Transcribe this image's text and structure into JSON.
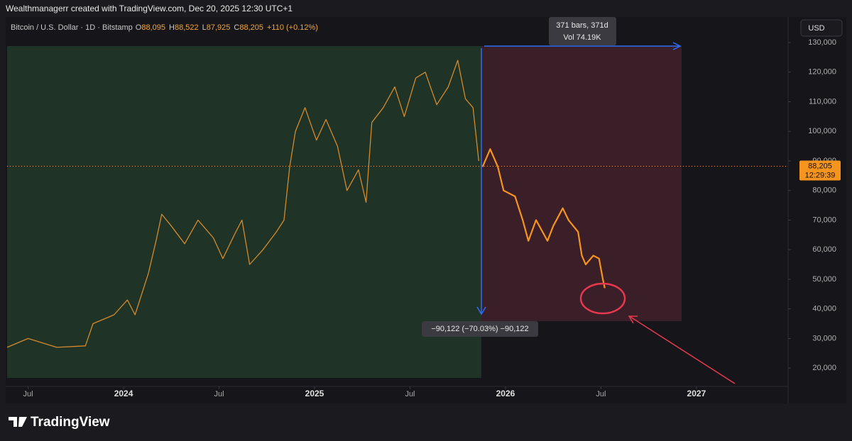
{
  "header": "Wealthmanagerr created with TradingView.com, Dec 20, 2025 12:30 UTC+1",
  "footer_logo": "TradingView",
  "chart_data": {
    "type": "line",
    "symbol": "Bitcoin / U.S. Dollar · 1D · Bitstamp",
    "ohlc": [
      {
        "label": "O",
        "value": "88,095"
      },
      {
        "label": "H",
        "value": "88,522"
      },
      {
        "label": "L",
        "value": "87,925"
      },
      {
        "label": "C",
        "value": "88,205"
      }
    ],
    "change": "+110 (+0.12%)",
    "currency": "USD",
    "last_price": {
      "value": 88205,
      "label": "88,205"
    },
    "countdown": "12:29:39",
    "measure_bars": "371 bars, 371d",
    "measure_volume": "Vol 74.19K",
    "measure_change": "−90,122 (−70.03%) −90,122",
    "series": [
      {
        "color": "#d48a2c",
        "x": [
          2023.39,
          2023.5,
          2023.65,
          2023.8,
          2023.84,
          2023.95,
          2024.02,
          2024.06,
          2024.13,
          2024.17,
          2024.2,
          2024.25,
          2024.32,
          2024.39,
          2024.47,
          2024.52,
          2024.58,
          2024.62,
          2024.66,
          2024.73,
          2024.8,
          2024.84,
          2024.87,
          2024.9,
          2024.95,
          2025.01,
          2025.06,
          2025.12,
          2025.17,
          2025.23,
          2025.27,
          2025.3,
          2025.36,
          2025.42,
          2025.47,
          2025.53,
          2025.58,
          2025.64,
          2025.7,
          2025.75,
          2025.79,
          2025.83,
          2025.86
        ],
        "values": [
          27000,
          30000,
          27000,
          27500,
          35000,
          38000,
          43000,
          38000,
          52000,
          63000,
          72000,
          68000,
          62000,
          70000,
          64000,
          57000,
          65000,
          70000,
          55000,
          60000,
          66000,
          70000,
          88000,
          100000,
          108000,
          97000,
          104000,
          95000,
          80000,
          87000,
          76000,
          103000,
          108000,
          115000,
          105000,
          118000,
          120000,
          109000,
          115000,
          124000,
          111000,
          108000,
          90000
        ]
      },
      {
        "color": "#f7941d",
        "x": [
          2025.88,
          2025.92,
          2025.96,
          2025.99,
          2026.05,
          2026.09,
          2026.12,
          2026.16,
          2026.22,
          2026.25,
          2026.3,
          2026.33,
          2026.38,
          2026.4,
          2026.42,
          2026.46,
          2026.49,
          2026.51,
          2026.52
        ],
        "values": [
          88000,
          94000,
          88000,
          80000,
          78000,
          70000,
          63000,
          70000,
          63000,
          68000,
          74000,
          70000,
          66000,
          58000,
          55000,
          58000,
          57000,
          50000,
          47000
        ]
      }
    ],
    "xlim": [
      2023.39,
      2027.48
    ],
    "xticks": [
      {
        "value": 2023.5,
        "label": "Jul"
      },
      2024,
      {
        "value": 2024.5,
        "label": "Jul"
      },
      2025,
      {
        "value": 2025.5,
        "label": "Jul"
      },
      2026,
      {
        "value": 2026.5,
        "label": "Jul"
      },
      2027
    ],
    "ylim": [
      13800,
      132400
    ],
    "yticks": [
      {
        "value": 20000,
        "label": "20,000"
      },
      {
        "value": 30000,
        "label": "30,000"
      },
      {
        "value": 40000,
        "label": "40,000"
      },
      {
        "value": 50000,
        "label": "50,000"
      },
      {
        "value": 60000,
        "label": "60,000"
      },
      {
        "value": 70000,
        "label": "70,000"
      },
      {
        "value": 80000,
        "label": "80,000"
      },
      {
        "value": 90000,
        "label": "90,000"
      },
      {
        "value": 100000,
        "label": "100,000"
      },
      {
        "value": 110000,
        "label": "110,000"
      },
      {
        "value": 120000,
        "label": "120,000"
      },
      {
        "value": 130000,
        "label": "130,000"
      }
    ],
    "grid": false
  }
}
